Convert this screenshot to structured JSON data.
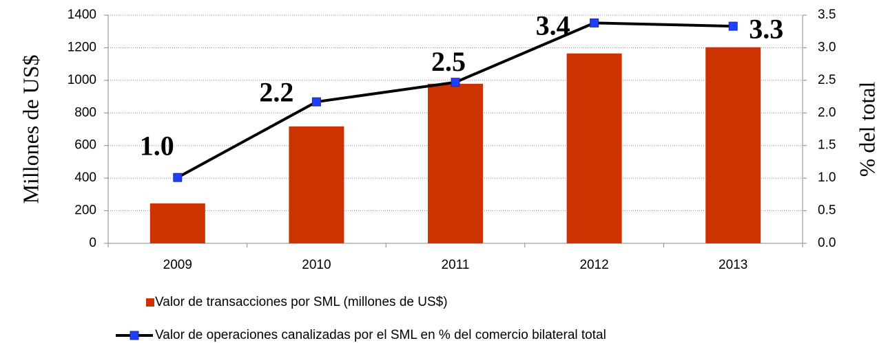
{
  "chart_data": {
    "type": "bar",
    "categories": [
      "2009",
      "2010",
      "2011",
      "2012",
      "2013"
    ],
    "series": [
      {
        "name": "Valor de transacciones por SML (millones de US$)",
        "type": "bar",
        "color": "#cc3300",
        "values": [
          245,
          717,
          979,
          1165,
          1203
        ]
      },
      {
        "name": "Valor de operaciones canalizadas por el SML en % del comercio bilateral total",
        "type": "line",
        "axis": "y2",
        "color": "#000000",
        "marker_color": "#1f3fff",
        "values": [
          1.01,
          2.17,
          2.47,
          3.38,
          3.33
        ],
        "value_labels": [
          "1.0",
          "2.2",
          "2.5",
          "3.4",
          "3.3"
        ]
      }
    ],
    "y_label": "Millones de US$",
    "y2_label": "% del total",
    "ylim": [
      0,
      1400
    ],
    "yticks": [
      0,
      200,
      400,
      600,
      800,
      1000,
      1200,
      1400
    ],
    "y2lim": [
      0,
      3.5
    ],
    "y2ticks": [
      {
        "value": 0,
        "label": "0.0"
      },
      0.5,
      {
        "value": 1,
        "label": "1.0"
      },
      1.5,
      {
        "value": 2,
        "label": "2.0"
      },
      2.5,
      {
        "value": 3,
        "label": "3.0"
      },
      3.5
    ],
    "grid": true
  }
}
